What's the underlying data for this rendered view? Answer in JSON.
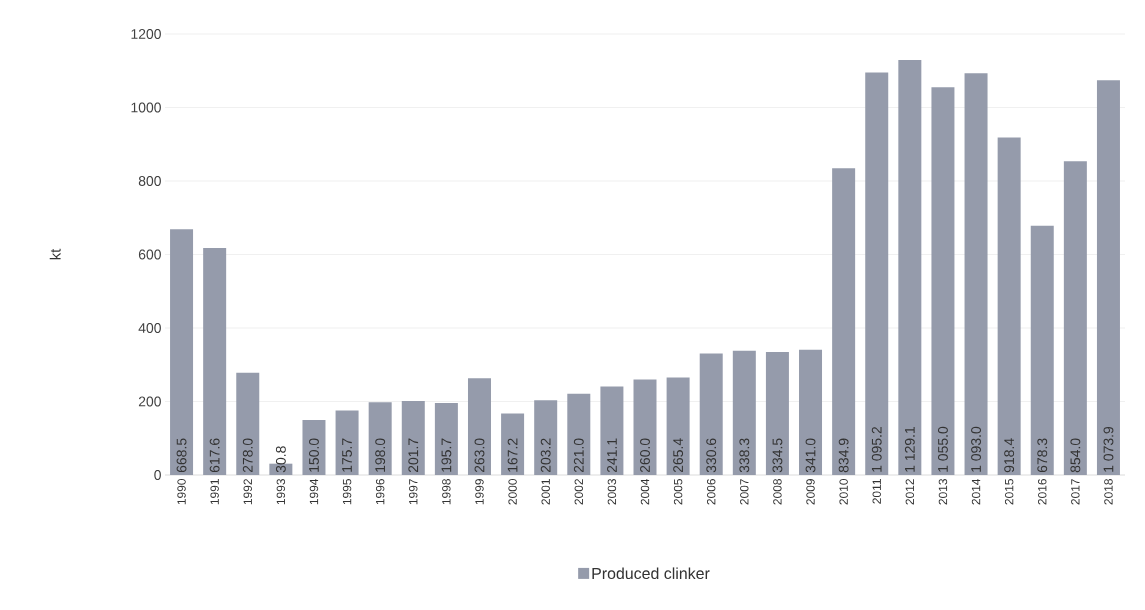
{
  "chart_data": {
    "type": "bar",
    "ylabel": "kt",
    "categories": [
      "1990",
      "1991",
      "1992",
      "1993",
      "1994",
      "1995",
      "1996",
      "1997",
      "1998",
      "1999",
      "2000",
      "2001",
      "2002",
      "2003",
      "2004",
      "2005",
      "2006",
      "2007",
      "2008",
      "2009",
      "2010",
      "2011",
      "2012",
      "2013",
      "2014",
      "2015",
      "2016",
      "2017",
      "2018"
    ],
    "series": [
      {
        "name": "Produced clinker",
        "color": "#959bab",
        "values": [
          668.5,
          617.6,
          278.0,
          30.8,
          150.0,
          175.7,
          198.0,
          201.7,
          195.7,
          263.0,
          167.2,
          203.2,
          221.0,
          241.1,
          260.0,
          265.4,
          330.6,
          338.3,
          334.5,
          341.0,
          834.9,
          1095.2,
          1129.1,
          1055.0,
          1093.0,
          918.4,
          678.3,
          854.0,
          1073.9
        ],
        "value_labels": [
          "668.5",
          "617.6",
          "278.0",
          "30.8",
          "150.0",
          "175.7",
          "198.0",
          "201.7",
          "195.7",
          "263.0",
          "167.2",
          "203.2",
          "221.0",
          "241.1",
          "260.0",
          "265.4",
          "330.6",
          "338.3",
          "334.5",
          "341.0",
          "834.9",
          "1 095.2",
          "1 129.1",
          "1 055.0",
          "1 093.0",
          "918.4",
          "678.3",
          "854.0",
          "1 073.9"
        ]
      }
    ],
    "ylim": [
      0,
      1200
    ],
    "yticks": [
      0,
      200,
      400,
      600,
      800,
      1000,
      1200
    ],
    "grid": "y",
    "legend": "bottom"
  }
}
